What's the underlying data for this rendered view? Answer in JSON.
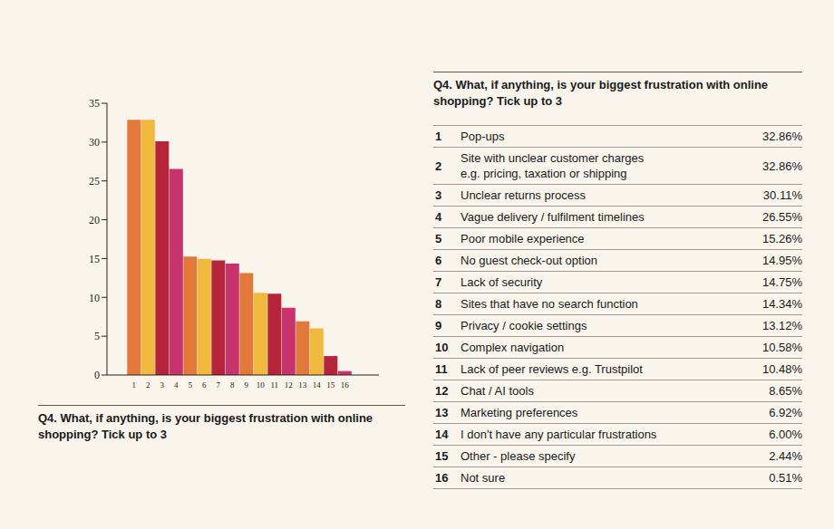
{
  "chart_data": {
    "type": "bar",
    "title": "Q4. What, if anything, is your biggest frustration with online shopping? Tick up to 3",
    "categories": [
      "1",
      "2",
      "3",
      "4",
      "5",
      "6",
      "7",
      "8",
      "9",
      "10",
      "11",
      "12",
      "13",
      "14",
      "15",
      "16"
    ],
    "values": [
      32.86,
      32.86,
      30.11,
      26.55,
      15.26,
      14.95,
      14.75,
      14.34,
      13.12,
      10.58,
      10.48,
      8.65,
      6.92,
      6.0,
      2.44,
      0.51
    ],
    "colors": [
      "#e2783a",
      "#f0b83c",
      "#b5253a",
      "#c8336e",
      "#e2783a",
      "#f0b83c",
      "#b5253a",
      "#c8336e",
      "#e2783a",
      "#f0b83c",
      "#b5253a",
      "#c8336e",
      "#e2783a",
      "#f0b83c",
      "#b5253a",
      "#c8336e"
    ],
    "ylim": [
      0,
      35
    ],
    "yticks": [
      0,
      5,
      10,
      15,
      20,
      25,
      30,
      35
    ],
    "grid": false
  },
  "table": {
    "title": "Q4. What, if anything, is your biggest frustration with online shopping? Tick up to 3",
    "rows": [
      [
        "1",
        "Pop-ups",
        "32.86%"
      ],
      [
        "2",
        [
          "Site with unclear customer charges",
          "e.g. pricing, taxation or shipping"
        ],
        "32.86%"
      ],
      [
        "3",
        "Unclear returns process",
        "30.11%"
      ],
      [
        "4",
        "Vague delivery / fulfilment timelines",
        "26.55%"
      ],
      [
        "5",
        "Poor mobile experience",
        "15.26%"
      ],
      [
        "6",
        "No guest check-out option",
        "14.95%"
      ],
      [
        "7",
        "Lack of security",
        "14.75%"
      ],
      [
        "8",
        "Sites that have no search function",
        "14.34%"
      ],
      [
        "9",
        "Privacy / cookie settings",
        "13.12%"
      ],
      [
        "10",
        "Complex navigation",
        "10.58%"
      ],
      [
        "11",
        "Lack of peer reviews e.g. Trustpilot",
        "10.48%"
      ],
      [
        "12",
        "Chat / AI tools",
        "8.65%"
      ],
      [
        "13",
        "Marketing preferences",
        "6.92%"
      ],
      [
        "14",
        "I don't have any particular frustrations",
        "6.00%"
      ],
      [
        "15",
        "Other - please specify",
        "2.44%"
      ],
      [
        "16",
        "Not sure",
        "0.51%"
      ]
    ]
  }
}
